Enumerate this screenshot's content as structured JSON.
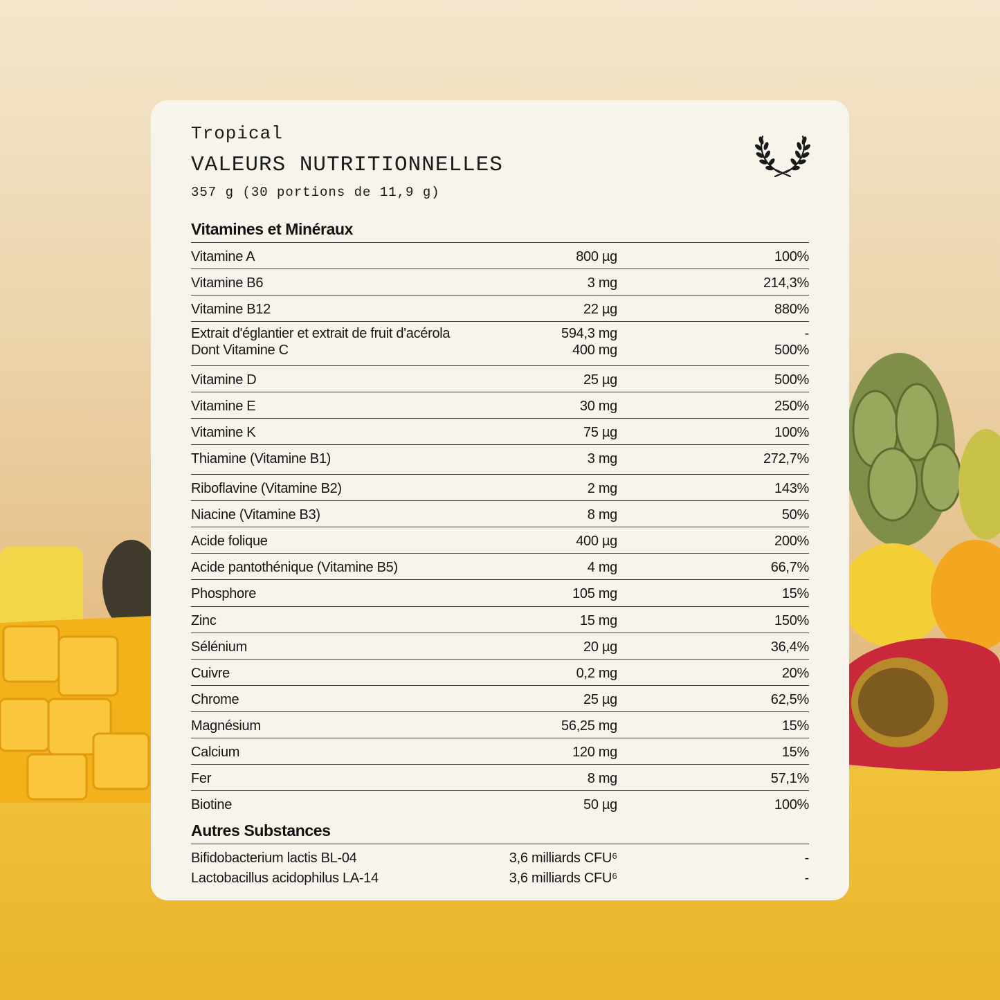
{
  "header": {
    "brand": "Tropical",
    "title": "VALEURS NUTRITIONNELLES",
    "subtitle": "357 g (30 portions de 11,9 g)",
    "logo_icon": "laurel-wreath-icon"
  },
  "vitamins_section": {
    "title": "Vitamines et Minéraux",
    "rows": [
      {
        "name": "Vitamine A",
        "amount": "800 µg",
        "dv": "100%"
      },
      {
        "name": "Vitamine B6",
        "amount": "3 mg",
        "dv": "214,3%"
      },
      {
        "name": "Vitamine B12",
        "amount": "22 µg",
        "dv": "880%"
      },
      {
        "name": "Extrait d'églantier et extrait de fruit d'acérola",
        "name2": "Dont Vitamine C",
        "amount": "594,3 mg",
        "amount2": "400 mg",
        "dv": "-",
        "dv2": "500%"
      },
      {
        "name": "Vitamine D",
        "amount": "25 µg",
        "dv": "500%"
      },
      {
        "name": "Vitamine E",
        "amount": "30 mg",
        "dv": "250%"
      },
      {
        "name": "Vitamine K",
        "amount": "75 µg",
        "dv": "100%"
      },
      {
        "name": "Thiamine (Vitamine B1)",
        "amount": "3 mg",
        "dv": "272,7%"
      },
      {
        "name": "Riboflavine (Vitamine B2)",
        "amount": "2 mg",
        "dv": "143%"
      },
      {
        "name": "Niacine (Vitamine B3)",
        "amount": "8 mg",
        "dv": "50%"
      },
      {
        "name": "Acide folique",
        "amount": "400 µg",
        "dv": "200%"
      },
      {
        "name": "Acide pantothénique (Vitamine B5)",
        "amount": "4 mg",
        "dv": "66,7%"
      },
      {
        "name": "Phosphore",
        "amount": "105 mg",
        "dv": "15%"
      },
      {
        "name": "Zinc",
        "amount": "15 mg",
        "dv": "150%"
      },
      {
        "name": "Sélénium",
        "amount": "20 µg",
        "dv": "36,4%"
      },
      {
        "name": "Cuivre",
        "amount": "0,2 mg",
        "dv": "20%"
      },
      {
        "name": "Chrome",
        "amount": "25 µg",
        "dv": "62,5%"
      },
      {
        "name": "Magnésium",
        "amount": "56,25 mg",
        "dv": "15%"
      },
      {
        "name": "Calcium",
        "amount": "120 mg",
        "dv": "15%"
      },
      {
        "name": "Fer",
        "amount": "8 mg",
        "dv": "57,1%"
      },
      {
        "name": "Biotine",
        "amount": "50 µg",
        "dv": "100%"
      }
    ]
  },
  "other_section": {
    "title": "Autres Substances",
    "rows": [
      {
        "name": "Bifidobacterium lactis BL-04",
        "amount": "3,6 milliards CFU⁶",
        "dv": "-"
      },
      {
        "name": "Lactobacillus acidophilus LA-14",
        "amount": "3,6 milliards CFU⁶",
        "dv": "-"
      }
    ]
  }
}
